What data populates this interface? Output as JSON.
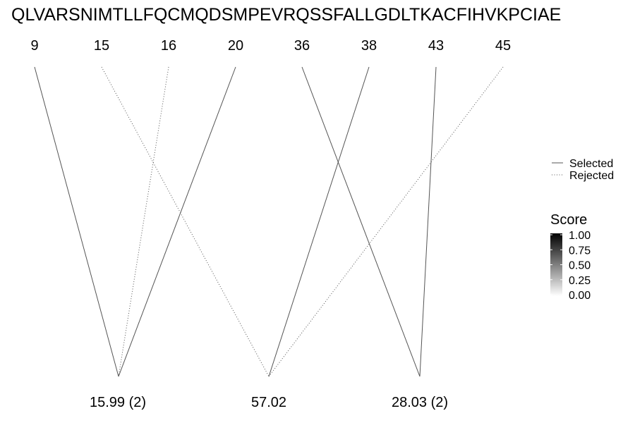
{
  "sequence": "QLVARSNIMTLLFQCMQDSMPEVRQSSFALLGDLTKACFIHVKPCIAE",
  "positions": [
    "9",
    "15",
    "16",
    "20",
    "36",
    "38",
    "43",
    "45"
  ],
  "groups": [
    "15.99 (2)",
    "57.02",
    "28.03 (2)"
  ],
  "links": [
    {
      "position": "9",
      "group": "15.99 (2)",
      "status": "Selected"
    },
    {
      "position": "15",
      "group": "57.02",
      "status": "Rejected"
    },
    {
      "position": "16",
      "group": "15.99 (2)",
      "status": "Rejected"
    },
    {
      "position": "20",
      "group": "15.99 (2)",
      "status": "Selected"
    },
    {
      "position": "36",
      "group": "28.03 (2)",
      "status": "Selected"
    },
    {
      "position": "38",
      "group": "57.02",
      "status": "Selected"
    },
    {
      "position": "43",
      "group": "28.03 (2)",
      "status": "Selected"
    },
    {
      "position": "45",
      "group": "57.02",
      "status": "Rejected"
    }
  ],
  "legend": {
    "linetype": {
      "selected_label": "Selected",
      "rejected_label": "Rejected"
    },
    "score": {
      "title": "Score",
      "ticks": [
        "1.00",
        "0.75",
        "0.50",
        "0.25",
        "0.00"
      ],
      "gradient_top_color": "#000000",
      "gradient_bottom_color": "#ffffff"
    }
  },
  "colors": {
    "link_line": "#555555",
    "text": "#000000"
  }
}
